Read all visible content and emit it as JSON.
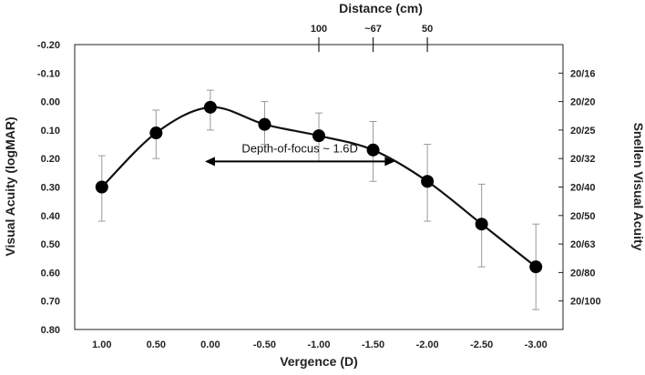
{
  "chart_data": {
    "type": "line",
    "xlabel": "Vergence (D)",
    "ylabel": "Visual Acuity (logMAR)",
    "y2label": "Snellen Visual Acuity",
    "x2label": "Distance (cm)",
    "x_reversed": true,
    "xlim": [
      1.25,
      -3.25
    ],
    "ylim": [
      0.8,
      -0.2
    ],
    "y_inverted": true,
    "grid": false,
    "x_ticks": [
      {
        "v": 1.0,
        "label": "1.00"
      },
      {
        "v": 0.5,
        "label": "0.50"
      },
      {
        "v": 0.0,
        "label": "0.00"
      },
      {
        "v": -0.5,
        "label": "-0.50"
      },
      {
        "v": -1.0,
        "label": "-1.00"
      },
      {
        "v": -1.5,
        "label": "-1.50"
      },
      {
        "v": -2.0,
        "label": "-2.00"
      },
      {
        "v": -2.5,
        "label": "-2.50"
      },
      {
        "v": -3.0,
        "label": "-3.00"
      }
    ],
    "y_ticks": [
      {
        "v": -0.2,
        "label": "-0.20"
      },
      {
        "v": -0.1,
        "label": "-0.10"
      },
      {
        "v": 0.0,
        "label": "0.00"
      },
      {
        "v": 0.1,
        "label": "0.10"
      },
      {
        "v": 0.2,
        "label": "0.20"
      },
      {
        "v": 0.3,
        "label": "0.30"
      },
      {
        "v": 0.4,
        "label": "0.40"
      },
      {
        "v": 0.5,
        "label": "0.50"
      },
      {
        "v": 0.6,
        "label": "0.60"
      },
      {
        "v": 0.7,
        "label": "0.70"
      },
      {
        "v": 0.8,
        "label": "0.80"
      }
    ],
    "y2_ticks": [
      {
        "v": -0.1,
        "label": "20/16"
      },
      {
        "v": 0.0,
        "label": "20/20"
      },
      {
        "v": 0.1,
        "label": "20/25"
      },
      {
        "v": 0.2,
        "label": "20/32"
      },
      {
        "v": 0.3,
        "label": "20/40"
      },
      {
        "v": 0.4,
        "label": "20/50"
      },
      {
        "v": 0.5,
        "label": "20/63"
      },
      {
        "v": 0.6,
        "label": "20/80"
      },
      {
        "v": 0.7,
        "label": "20/100"
      }
    ],
    "x2_ticks": [
      {
        "v": -1.0,
        "label": "100"
      },
      {
        "v": -1.5,
        "label": "~67"
      },
      {
        "v": -2.0,
        "label": "50"
      }
    ],
    "series": [
      {
        "x": [
          1.0,
          0.5,
          0.0,
          -0.5,
          -1.0,
          -1.5,
          -2.0,
          -2.5,
          -3.0
        ],
        "y": [
          0.3,
          0.11,
          0.02,
          0.08,
          0.12,
          0.17,
          0.28,
          0.43,
          0.58
        ],
        "err_low": [
          0.19,
          0.03,
          -0.04,
          0.0,
          0.04,
          0.07,
          0.15,
          0.29,
          0.43
        ],
        "err_high": [
          0.42,
          0.2,
          0.1,
          0.15,
          0.21,
          0.28,
          0.42,
          0.58,
          0.73
        ]
      }
    ],
    "annotation": {
      "text": "Depth-of-focus ~ 1.6D",
      "arrow_x": [
        0.05,
        -1.7
      ],
      "arrow_y": 0.21
    }
  }
}
